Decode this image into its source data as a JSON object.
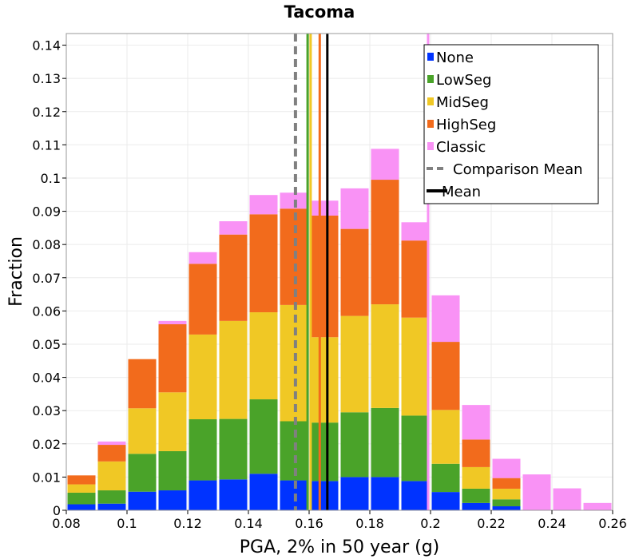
{
  "chart_data": {
    "type": "bar",
    "stacked": true,
    "title": "Tacoma",
    "xlabel": "PGA, 2% in 50 year (g)",
    "ylabel": "Fraction",
    "xlim": [
      0.08,
      0.26
    ],
    "ylim": [
      0,
      0.1435
    ],
    "x_ticks": [
      "0.08",
      "0.1",
      "0.12",
      "0.14",
      "0.16",
      "0.18",
      "0.2",
      "0.22",
      "0.24",
      "0.26"
    ],
    "y_ticks": [
      "0",
      "0.01",
      "0.02",
      "0.03",
      "0.04",
      "0.05",
      "0.06",
      "0.07",
      "0.08",
      "0.09",
      "0.1",
      "0.11",
      "0.12",
      "0.13",
      "0.14"
    ],
    "grid": true,
    "legend_position": "top-right",
    "bin_width": 0.01,
    "bin_starts": [
      0.08,
      0.09,
      0.1,
      0.11,
      0.12,
      0.13,
      0.14,
      0.15,
      0.16,
      0.17,
      0.18,
      0.19,
      0.2,
      0.21,
      0.22,
      0.23,
      0.24,
      0.25
    ],
    "series": [
      {
        "name": "None",
        "color": "#0033ff",
        "values": [
          0.0018,
          0.002,
          0.0056,
          0.006,
          0.009,
          0.0093,
          0.011,
          0.009,
          0.0088,
          0.01,
          0.01,
          0.0088,
          0.0055,
          0.0022,
          0.0012,
          0.0,
          0.0,
          0.0
        ]
      },
      {
        "name": "LowSeg",
        "color": "#4aa329",
        "values": [
          0.0035,
          0.004,
          0.0114,
          0.0118,
          0.0184,
          0.0182,
          0.0224,
          0.0178,
          0.0176,
          0.0195,
          0.0208,
          0.0197,
          0.0085,
          0.0043,
          0.0021,
          0.0,
          0.0,
          0.0
        ]
      },
      {
        "name": "MidSeg",
        "color": "#f0c825",
        "values": [
          0.0025,
          0.0087,
          0.0137,
          0.0177,
          0.0255,
          0.0295,
          0.0262,
          0.035,
          0.0257,
          0.029,
          0.0312,
          0.0295,
          0.0162,
          0.0065,
          0.0032,
          0.0,
          0.0,
          0.0
        ]
      },
      {
        "name": "HighSeg",
        "color": "#f26b1c",
        "values": [
          0.0027,
          0.005,
          0.0148,
          0.0205,
          0.0213,
          0.026,
          0.0295,
          0.029,
          0.0366,
          0.0262,
          0.0375,
          0.0232,
          0.0205,
          0.0083,
          0.0032,
          0.0,
          0.0,
          0.0
        ]
      },
      {
        "name": "Classic",
        "color": "#f992f5",
        "values": [
          0.0,
          0.001,
          0.0,
          0.001,
          0.0035,
          0.004,
          0.0058,
          0.0048,
          0.0045,
          0.0122,
          0.0093,
          0.0055,
          0.014,
          0.0104,
          0.0058,
          0.0108,
          0.0066,
          0.0022
        ]
      }
    ],
    "vertical_lines": [
      {
        "name": "Comparison Mean",
        "x": 0.1555,
        "color": "#808080",
        "style": "dashed"
      },
      {
        "name": "Mean",
        "x": 0.166,
        "color": "#000000",
        "style": "solid"
      },
      {
        "x": 0.1595,
        "color": "#4aa329",
        "style": "solid"
      },
      {
        "x": 0.1605,
        "color": "#f0c825",
        "style": "solid"
      },
      {
        "x": 0.1635,
        "color": "#f26b1c",
        "style": "solid"
      },
      {
        "x": 0.1992,
        "color": "#f992f5",
        "style": "solid"
      }
    ]
  }
}
